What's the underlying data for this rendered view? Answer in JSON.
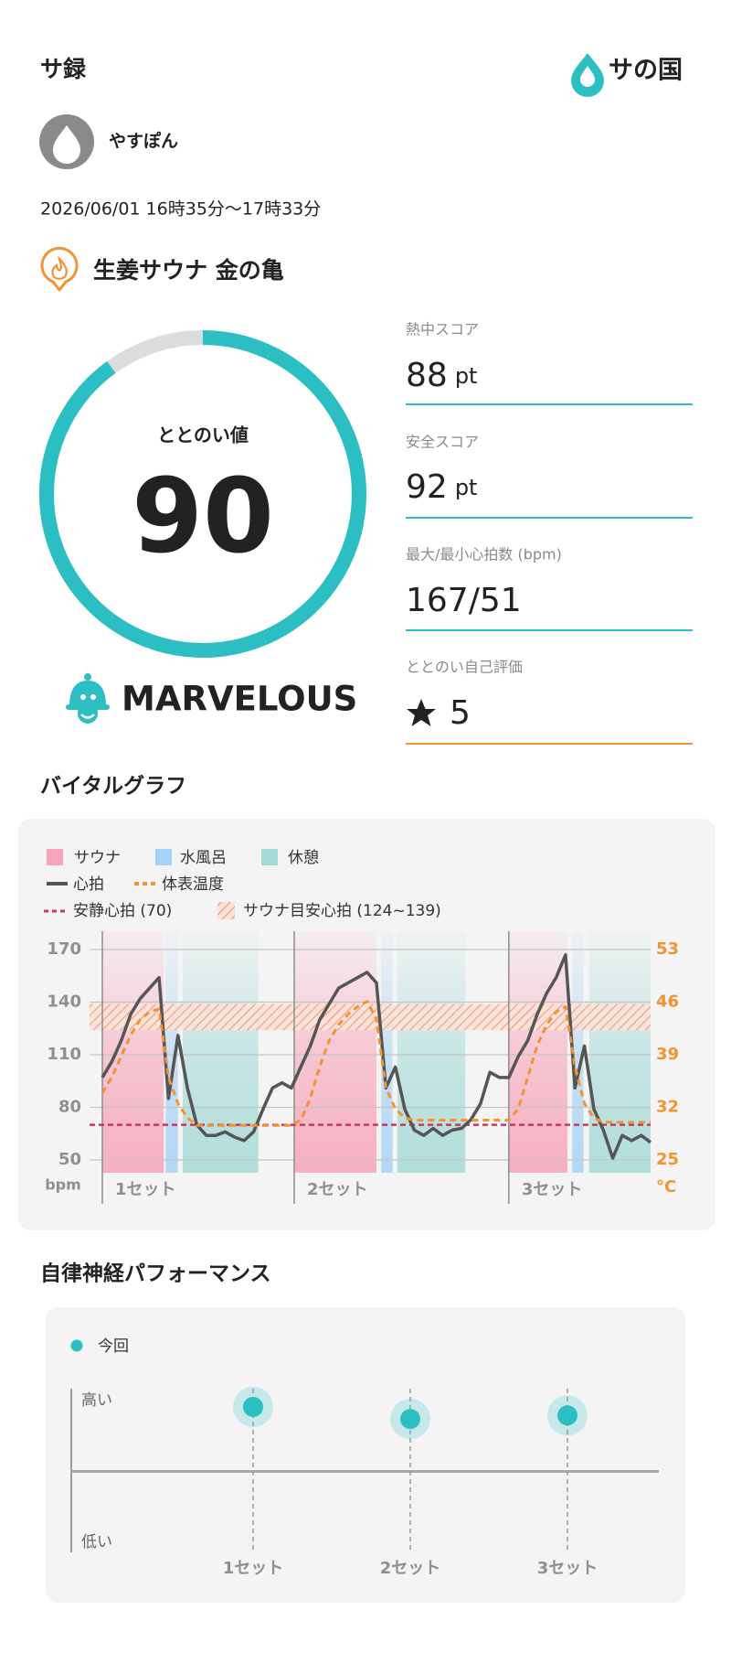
{
  "header": {
    "title": "サ録",
    "brand": "サの国"
  },
  "user": {
    "name": "やすぽん"
  },
  "session": {
    "datetime": "2026/06/01 16時35分〜17時33分",
    "facility": "生姜サウナ 金の亀"
  },
  "score": {
    "label": "ととのい値",
    "value": 90,
    "lim": [
      0,
      100
    ],
    "rating": "MARVELOUS"
  },
  "metrics": [
    {
      "label": "熱中スコア",
      "value": 88,
      "unit": "pt"
    },
    {
      "label": "安全スコア",
      "value": 92,
      "unit": "pt"
    },
    {
      "label": "最大/最小心拍数 (bpm)",
      "value": "167/51"
    },
    {
      "label": "ととのい自己評価",
      "value": 5
    }
  ],
  "chart_data": [
    {
      "type": "vital",
      "title": "バイタルグラフ",
      "x": [
        0,
        1,
        2,
        3,
        4,
        5,
        6,
        7,
        8,
        9,
        10,
        11,
        12,
        13,
        14,
        15,
        16,
        17,
        18,
        19,
        20,
        21,
        22,
        23,
        24,
        25,
        26,
        27,
        28,
        29,
        30,
        31,
        32,
        33,
        34,
        35,
        36,
        37,
        38,
        39,
        40,
        41,
        42,
        43,
        44,
        45,
        46,
        47,
        48,
        49,
        50,
        51,
        52,
        53,
        54,
        55,
        56,
        57,
        58
      ],
      "xlim": [
        0,
        58
      ],
      "xticks": [
        {
          "value": 0,
          "label": "1セット"
        },
        {
          "value": 20.3,
          "label": "2セット"
        },
        {
          "value": 43,
          "label": "3セット"
        }
      ],
      "phases": [
        {
          "name": "サウナ",
          "color": "#f7a3b9",
          "ranges": [
            [
              0,
              6.5
            ],
            [
              20.3,
              29
            ],
            [
              43,
              49.2
            ]
          ]
        },
        {
          "name": "水風呂",
          "color": "#a6d2f6",
          "ranges": [
            [
              6.7,
              8
            ],
            [
              29.5,
              30.7
            ],
            [
              49.7,
              50.9
            ]
          ]
        },
        {
          "name": "休憩",
          "color": "#a4dad6",
          "ranges": [
            [
              8.5,
              16.5
            ],
            [
              31.2,
              38.4
            ],
            [
              51.5,
              58
            ]
          ]
        }
      ],
      "series": [
        {
          "name": "心拍",
          "color": "#555555",
          "values": [
            97,
            106,
            118,
            133,
            142,
            148,
            154,
            85,
            121,
            91,
            70,
            64,
            64,
            66,
            63,
            61,
            66,
            79,
            91,
            94,
            91,
            103,
            115,
            130,
            139,
            148,
            151,
            154,
            157,
            151,
            91,
            103,
            79,
            67,
            64,
            68,
            64,
            67,
            68,
            73,
            82,
            100,
            97,
            97,
            109,
            118,
            133,
            145,
            154,
            167,
            91,
            115,
            79,
            67,
            51,
            64,
            61,
            64,
            60
          ]
        },
        {
          "name": "体表温度",
          "color": "#f39230",
          "axis": "y2",
          "dashed": true,
          "values": [
            33.9,
            36,
            38.8,
            41.6,
            43.7,
            44.7,
            45.1,
            36,
            32.5,
            30.6,
            29.6,
            29.6,
            29.6,
            29.6,
            29.6,
            29.6,
            29.6,
            29.6,
            29.6,
            29.6,
            29.6,
            30.3,
            33.2,
            37.4,
            40.9,
            43,
            44.4,
            45.4,
            46.1,
            43.7,
            34.6,
            31.8,
            30.6,
            30.3,
            30.3,
            30.3,
            30.3,
            30.3,
            30.3,
            30.3,
            30.3,
            30.3,
            30.3,
            30.3,
            31.8,
            36,
            40.2,
            43,
            44.7,
            45.4,
            37.4,
            32.5,
            30.6,
            30,
            30,
            30,
            30,
            30,
            30
          ]
        }
      ],
      "references": [
        {
          "name": "安静心拍 (70)",
          "color": "#c8385a",
          "value": 70
        },
        {
          "name": "サウナ目安心拍 (124~139)",
          "color": "#f0946e",
          "range": [
            124,
            139
          ]
        }
      ],
      "ylim": [
        50,
        170
      ],
      "yticks": [
        50,
        80,
        110,
        140,
        170
      ],
      "ylabel": "bpm",
      "y2lim": [
        25,
        53
      ],
      "y2ticks": [
        25,
        32,
        39,
        46,
        53
      ],
      "y2label": "°C"
    },
    {
      "type": "scatter",
      "title": "自律神経パフォーマンス",
      "categories": [
        "1セット",
        "2セット",
        "3セット"
      ],
      "series": [
        {
          "name": "今回",
          "color": "#2bbfc4",
          "values": [
            0.91,
            0.74,
            0.79
          ]
        }
      ],
      "ylim": [
        -1,
        1
      ],
      "yticks": [
        {
          "value": 1,
          "label": "高い"
        },
        {
          "value": -1,
          "label": "低い"
        }
      ]
    }
  ]
}
